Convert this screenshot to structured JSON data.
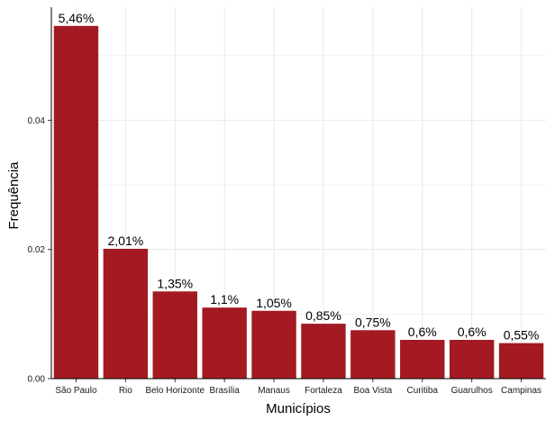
{
  "chart_data": {
    "type": "bar",
    "categories": [
      "São Paulo",
      "Rio",
      "Belo Horizonte",
      "Brasília",
      "Manaus",
      "Fortaleza",
      "Boa Vista",
      "Curitiba",
      "Guarulhos",
      "Campinas"
    ],
    "values": [
      0.0546,
      0.0201,
      0.0135,
      0.011,
      0.0105,
      0.0085,
      0.0075,
      0.006,
      0.006,
      0.0055
    ],
    "data_labels": [
      "5,46%",
      "2,01%",
      "1,35%",
      "1,1%",
      "1,05%",
      "0,85%",
      "0,75%",
      "0,6%",
      "0,6%",
      "0,55%"
    ],
    "title": "",
    "xlabel": "Municípios",
    "ylabel": "Frequência",
    "ylim": [
      0,
      0.0575
    ],
    "yticks": [
      0.0,
      0.02,
      0.04
    ],
    "ytick_labels": [
      "0.00",
      "0.02",
      "0.04"
    ],
    "grid": true,
    "bar_color": "#A31A22",
    "grid_color": "#EBEBEB"
  }
}
